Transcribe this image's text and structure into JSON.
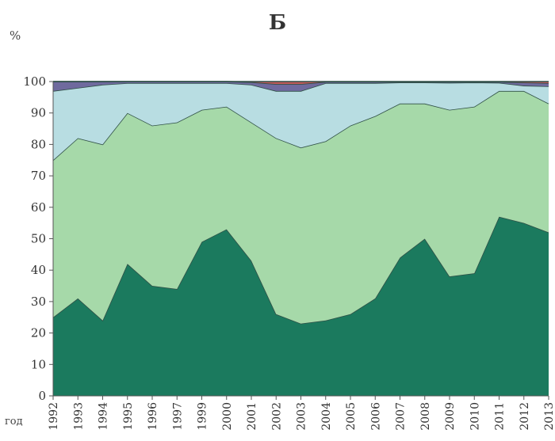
{
  "chart_data": {
    "type": "area",
    "stacked": true,
    "title": "Б",
    "ylabel": "%",
    "xlabel": "год",
    "ylim": [
      0,
      100
    ],
    "yticks": [
      0,
      10,
      20,
      30,
      40,
      50,
      60,
      70,
      80,
      90,
      100
    ],
    "grid": false,
    "legend": "none",
    "categories": [
      "1992",
      "1993",
      "1994",
      "1995",
      "1996",
      "1997",
      "1999",
      "2000",
      "2001",
      "2002",
      "2003",
      "2004",
      "2005",
      "2006",
      "2007",
      "2008",
      "2009",
      "2010",
      "2011",
      "2012",
      "2013"
    ],
    "series": [
      {
        "color": "#1b7a5e",
        "values": [
          25,
          31,
          24,
          42,
          35,
          34,
          49,
          53,
          43,
          26,
          23,
          24,
          26,
          31,
          44,
          50,
          38,
          39,
          57,
          55,
          52
        ]
      },
      {
        "color": "#a6d9a9",
        "values": [
          50,
          51,
          56,
          48,
          51,
          53,
          42,
          39,
          44,
          56,
          56,
          57,
          60,
          58,
          49,
          43,
          53,
          53,
          40,
          42,
          41
        ]
      },
      {
        "color": "#b8dde2",
        "values": [
          22,
          16,
          19,
          9.5,
          13.5,
          12.5,
          8.5,
          7.5,
          12,
          15,
          18,
          18.5,
          13.5,
          10.5,
          6.7,
          6.7,
          8.6,
          7.7,
          2.6,
          1.7,
          5.5
        ]
      },
      {
        "color": "#6f6a9e",
        "values": [
          3,
          2,
          1,
          0.5,
          0.5,
          0.5,
          0.5,
          0.5,
          0.8,
          2.2,
          2.2,
          0.4,
          0.4,
          0.4,
          0.2,
          0.2,
          0.3,
          0.2,
          0.3,
          1.0,
          1.0
        ]
      },
      {
        "color": "#c05a5a",
        "values": [
          0,
          0,
          0,
          0,
          0,
          0,
          0,
          0,
          0.2,
          0.8,
          0.8,
          0.1,
          0.1,
          0.1,
          0.1,
          0.1,
          0.1,
          0.1,
          0.1,
          0.3,
          0.5
        ]
      }
    ]
  }
}
